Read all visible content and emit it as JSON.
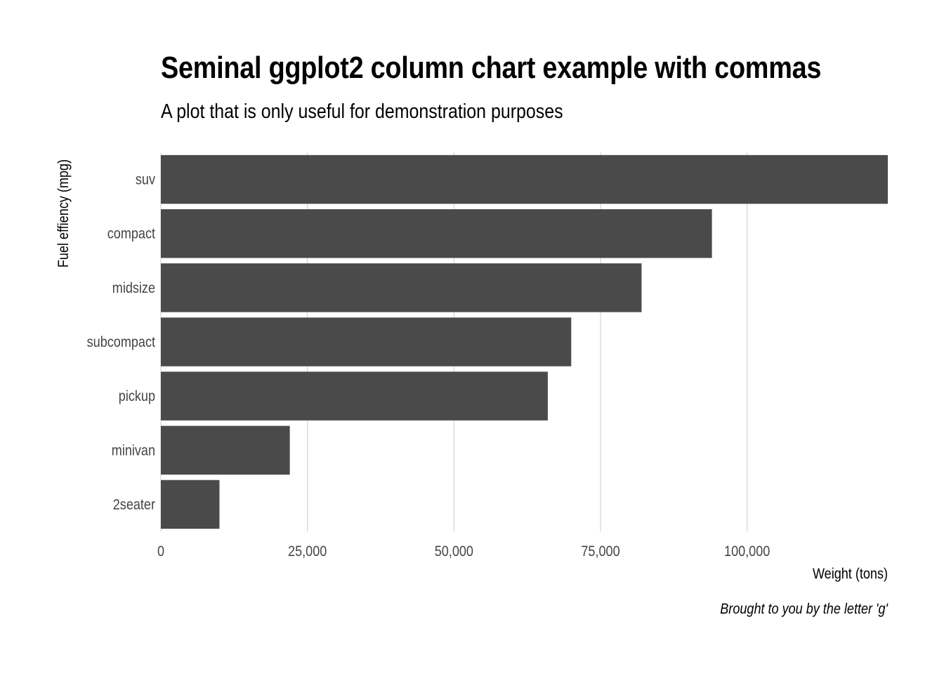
{
  "chart_data": {
    "type": "bar",
    "orientation": "horizontal",
    "title": "Seminal ggplot2 column chart example with commas",
    "subtitle": "A plot that is only useful for demonstration purposes",
    "caption": "Brought to you by the letter 'g'",
    "xlabel": "Weight (tons)",
    "ylabel": "Fuel effiency (mpg)",
    "categories": [
      "suv",
      "compact",
      "midsize",
      "subcompact",
      "pickup",
      "minivan",
      "2seater"
    ],
    "values": [
      124000,
      94000,
      82000,
      70000,
      66000,
      22000,
      10000
    ],
    "xlim": [
      0,
      124000
    ],
    "x_ticks": [
      0,
      25000,
      50000,
      75000,
      100000
    ],
    "x_tick_labels": [
      "0",
      "25,000",
      "50,000",
      "75,000",
      "100,000"
    ],
    "grid": "vertical",
    "bar_color": "#4a4a4a",
    "grid_color": "#cccccc"
  }
}
